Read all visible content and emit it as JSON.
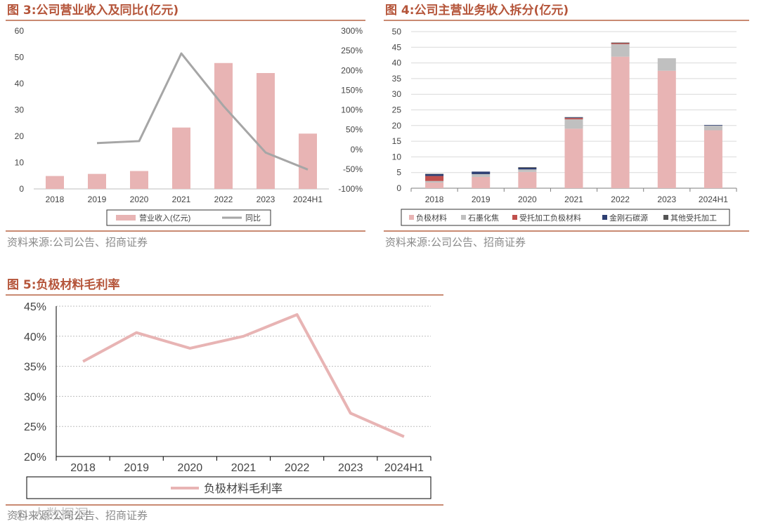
{
  "figures": [
    {
      "title": "图 3:公司营业收入及同比(亿元)",
      "source": "资料来源:公司公告、招商证券"
    },
    {
      "title": "图 4:公司主营业务收入拆分(亿元)",
      "source": "资料来源:公司公告、招商证券"
    },
    {
      "title": "图 5:负极材料毛利率",
      "source": "资料来源:公司公告、招商证券"
    }
  ],
  "watermark": "◎ 人数探洞",
  "colors": {
    "pink": "#e8b4b4",
    "gray_line": "#a6a6a6",
    "gray_bar": "#c0c0c0",
    "red": "#c0504d",
    "navy": "#2e3f72",
    "dark": "#555555",
    "title": "#b5553a",
    "rule": "#c98a72"
  },
  "chart_data": [
    {
      "type": "bar",
      "categories": [
        "2018",
        "2019",
        "2020",
        "2021",
        "2022",
        "2023",
        "2024H1"
      ],
      "series": [
        {
          "name": "营业收入(亿元)",
          "values": [
            4.9,
            5.7,
            6.8,
            23.3,
            47.8,
            44.0,
            21.0
          ],
          "axis": "left"
        },
        {
          "name": "同比",
          "type": "line",
          "values": [
            null,
            16,
            21,
            243,
            110,
            -8,
            -51
          ],
          "axis": "right",
          "unit": "%"
        }
      ],
      "ylim_left": [
        0,
        60
      ],
      "yticks_left": [
        "0",
        "10",
        "20",
        "30",
        "40",
        "50",
        "60"
      ],
      "ylim_right": [
        -100,
        300
      ],
      "yticks_right": [
        "-100%",
        "-50%",
        "0%",
        "50%",
        "100%",
        "150%",
        "200%",
        "250%",
        "300%"
      ],
      "legend": "bottom"
    },
    {
      "type": "bar",
      "stacked": true,
      "categories": [
        "2018",
        "2019",
        "2020",
        "2021",
        "2022",
        "2023",
        "2024H1"
      ],
      "series": [
        {
          "name": "负极材料",
          "values": [
            1.8,
            3.6,
            5.2,
            19.0,
            42.0,
            37.5,
            18.5
          ]
        },
        {
          "name": "石墨化焦",
          "values": [
            0.5,
            0.9,
            0.8,
            3.0,
            4.0,
            4.0,
            1.5
          ]
        },
        {
          "name": "受托加工负极材料",
          "values": [
            1.6,
            0.0,
            0.0,
            0.4,
            0.3,
            0.0,
            0.0
          ]
        },
        {
          "name": "金刚石碳源",
          "values": [
            0.6,
            0.8,
            0.5,
            0.2,
            0.0,
            0.0,
            0.2
          ]
        },
        {
          "name": "其他受托加工",
          "values": [
            0.1,
            0.0,
            0.2,
            0.1,
            0.2,
            0.0,
            0.0
          ]
        }
      ],
      "ylim": [
        0,
        50
      ],
      "yticks": [
        "0",
        "5",
        "10",
        "15",
        "20",
        "25",
        "30",
        "35",
        "40",
        "45",
        "50"
      ],
      "legend": "bottom"
    },
    {
      "type": "line",
      "categories": [
        "2018",
        "2019",
        "2020",
        "2021",
        "2022",
        "2023",
        "2024H1"
      ],
      "series": [
        {
          "name": "负极材料毛利率",
          "values": [
            35.8,
            40.6,
            38.0,
            40.0,
            43.6,
            27.2,
            23.3
          ],
          "unit": "%"
        }
      ],
      "ylim": [
        20,
        45
      ],
      "yticks": [
        "20%",
        "25%",
        "30%",
        "35%",
        "40%",
        "45%"
      ],
      "legend": "bottom"
    }
  ]
}
